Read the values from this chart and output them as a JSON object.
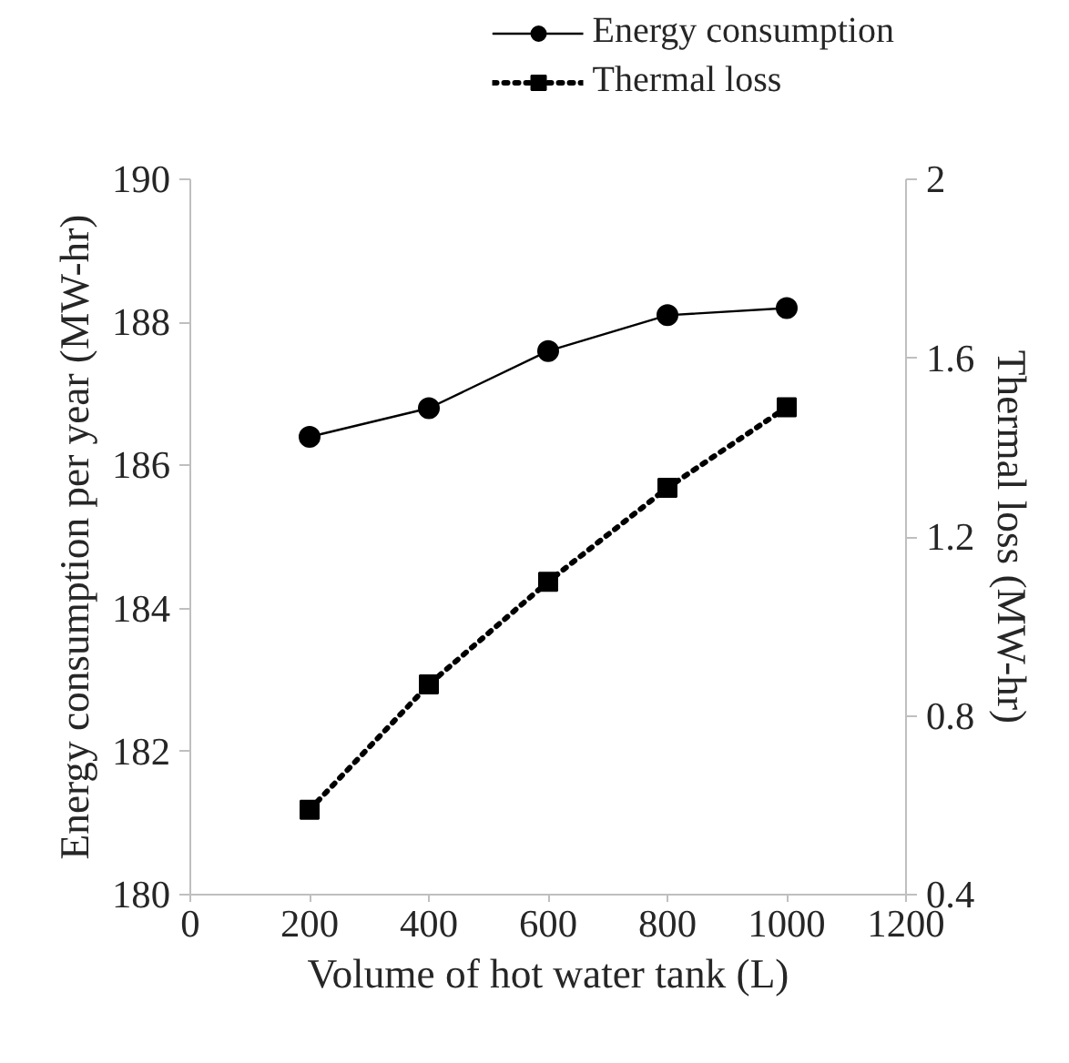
{
  "chart_data": {
    "type": "line",
    "xlabel": "Volume of hot water tank (L)",
    "ylabel": "Energy consumption per year (MW-hr)",
    "y2label": "Thermal loss (MW-hr)",
    "x": [
      200,
      400,
      600,
      800,
      1000
    ],
    "series": [
      {
        "name": "Energy consumption",
        "color": "#000000",
        "values": [
          186.4,
          186.8,
          187.6,
          188.1,
          188.2
        ],
        "marker": "circle",
        "line_style": "solid"
      },
      {
        "name": "Thermal loss",
        "color": "#000000",
        "values": [
          0.59,
          0.87,
          1.1,
          1.31,
          1.49
        ],
        "marker": "square",
        "line_style": "dotted",
        "axis": "y2"
      }
    ],
    "xlim": [
      0,
      1200
    ],
    "xticks": [
      0,
      200,
      400,
      600,
      800,
      1000,
      1200
    ],
    "ylim": [
      180,
      190
    ],
    "yticks": [
      180,
      182,
      184,
      186,
      188,
      190
    ],
    "y2lim": [
      0.4,
      2
    ],
    "y2ticks": [
      {
        "value": 0.4,
        "label": "0.4"
      },
      {
        "value": 0.8,
        "label": "0.8"
      },
      {
        "value": 1.2,
        "label": "1.2"
      },
      {
        "value": 1.6,
        "label": "1.6"
      },
      {
        "value": 2,
        "label": "2"
      }
    ],
    "grid": false,
    "legend": "top right"
  }
}
